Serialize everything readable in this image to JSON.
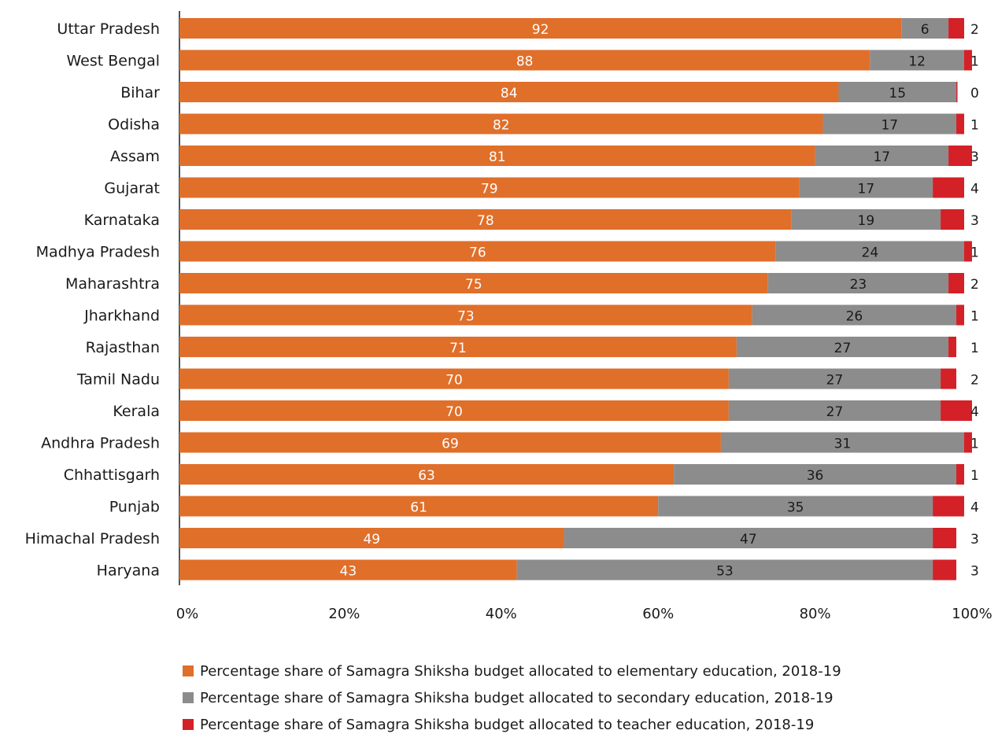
{
  "chart_data": {
    "type": "bar",
    "orientation": "horizontal",
    "stacked": true,
    "categories": [
      "Uttar Pradesh",
      "West Bengal",
      "Bihar",
      "Odisha",
      "Assam",
      "Gujarat",
      "Karnataka",
      "Madhya Pradesh",
      "Maharashtra",
      "Jharkhand",
      "Rajasthan",
      "Tamil Nadu",
      "Kerala",
      "Andhra Pradesh",
      "Chhattisgarh",
      "Punjab",
      "Himachal Pradesh",
      "Haryana"
    ],
    "series": [
      {
        "name": "Percentage share of Samagra Shiksha budget allocated to elementary education, 2018-19",
        "color": "#e06f2a",
        "label_color": "#ffffff",
        "values": [
          92,
          88,
          84,
          82,
          81,
          79,
          78,
          76,
          75,
          73,
          71,
          70,
          70,
          69,
          63,
          61,
          49,
          43
        ]
      },
      {
        "name": "Percentage share of Samagra Shiksha budget allocated to secondary education, 2018-19",
        "color": "#8c8c8c",
        "label_color": "#1a1a1a",
        "values": [
          6,
          12,
          15,
          17,
          17,
          17,
          19,
          24,
          23,
          26,
          27,
          27,
          27,
          31,
          36,
          35,
          47,
          53
        ]
      },
      {
        "name": "Percentage share of Samagra Shiksha budget allocated to teacher education, 2018-19",
        "color": "#d42027",
        "label_color": "#1a1a1a",
        "values": [
          2,
          1,
          0,
          1,
          3,
          4,
          3,
          1,
          2,
          1,
          1,
          2,
          4,
          1,
          1,
          4,
          3,
          3
        ]
      }
    ],
    "x_ticks": [
      "0%",
      "20%",
      "40%",
      "60%",
      "80%",
      "100%"
    ],
    "xlim": [
      0,
      100
    ],
    "grid": false,
    "legend": "bottom"
  }
}
